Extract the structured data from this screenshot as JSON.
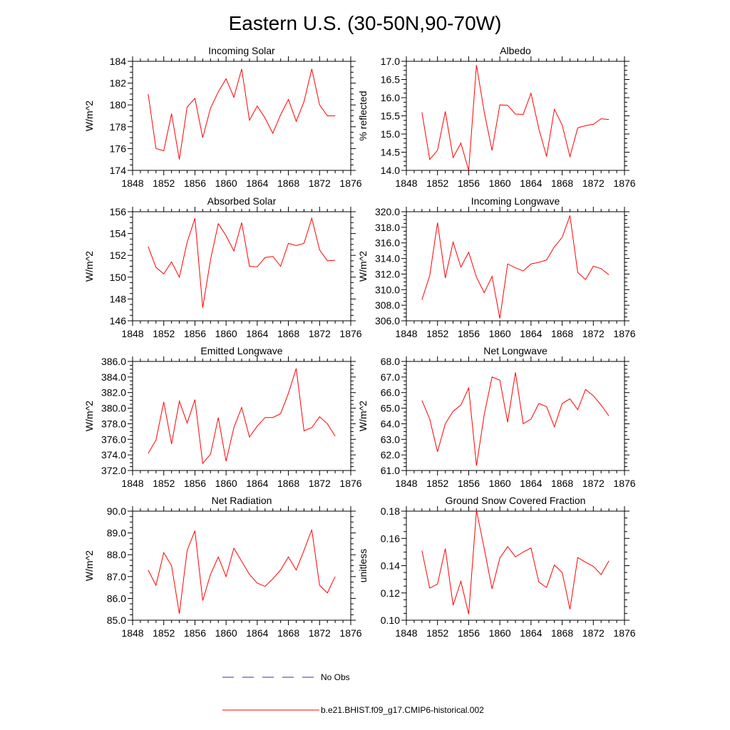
{
  "figure": {
    "title": "Eastern U.S. (30-50N,90-70W)"
  },
  "legend": {
    "obs_label": "No Obs",
    "obs_color": "#3333aa",
    "model_label": "b.e21.BHIST.f09_g17.CMIP6-historical.002",
    "model_color": "#ff0000"
  },
  "chart_data": [
    {
      "type": "line",
      "title": "Incoming Solar",
      "ylabel": "W/m^2",
      "xlim": [
        1848,
        1876
      ],
      "ylim": [
        174,
        184
      ],
      "xticks": [
        1848,
        1852,
        1856,
        1860,
        1864,
        1868,
        1872,
        1876
      ],
      "yticks": [
        174,
        176,
        178,
        180,
        182,
        184
      ],
      "ydecimals": 0,
      "x": [
        1850,
        1851,
        1852,
        1853,
        1854,
        1855,
        1856,
        1857,
        1858,
        1859,
        1860,
        1861,
        1862,
        1863,
        1864,
        1865,
        1866,
        1867,
        1868,
        1869,
        1870,
        1871,
        1872,
        1873,
        1874
      ],
      "series": [
        {
          "name": "b.e21.BHIST.f09_g17.CMIP6-historical.002",
          "values": [
            181.0,
            176.0,
            175.8,
            179.2,
            175.0,
            179.8,
            180.6,
            177.0,
            179.7,
            181.2,
            182.4,
            180.7,
            183.3,
            178.6,
            179.9,
            178.8,
            177.4,
            179.1,
            180.5,
            178.5,
            180.3,
            183.3,
            180.0,
            179.0,
            179.0
          ]
        }
      ]
    },
    {
      "type": "line",
      "title": "Albedo",
      "ylabel": "% reflected",
      "xlim": [
        1848,
        1876
      ],
      "ylim": [
        14.0,
        17.0
      ],
      "xticks": [
        1848,
        1852,
        1856,
        1860,
        1864,
        1868,
        1872,
        1876
      ],
      "yticks": [
        14.0,
        14.5,
        15.0,
        15.5,
        16.0,
        16.5,
        17.0
      ],
      "ydecimals": 1,
      "x": [
        1850,
        1851,
        1852,
        1853,
        1854,
        1855,
        1856,
        1857,
        1858,
        1859,
        1860,
        1861,
        1862,
        1863,
        1864,
        1865,
        1866,
        1867,
        1868,
        1869,
        1870,
        1871,
        1872,
        1873,
        1874
      ],
      "series": [
        {
          "name": "b.e21.BHIST.f09_g17.CMIP6-historical.002",
          "values": [
            15.6,
            14.3,
            14.55,
            15.62,
            14.35,
            14.75,
            14.0,
            16.9,
            15.6,
            14.55,
            15.8,
            15.79,
            15.55,
            15.54,
            16.12,
            15.15,
            14.38,
            15.68,
            15.25,
            14.38,
            15.17,
            15.23,
            15.27,
            15.42,
            15.4
          ]
        }
      ]
    },
    {
      "type": "line",
      "title": "Absorbed Solar",
      "ylabel": "W/m^2",
      "xlim": [
        1848,
        1876
      ],
      "ylim": [
        146,
        156
      ],
      "xticks": [
        1848,
        1852,
        1856,
        1860,
        1864,
        1868,
        1872,
        1876
      ],
      "yticks": [
        146,
        148,
        150,
        152,
        154,
        156
      ],
      "ydecimals": 0,
      "x": [
        1850,
        1851,
        1852,
        1853,
        1854,
        1855,
        1856,
        1857,
        1858,
        1859,
        1860,
        1861,
        1862,
        1863,
        1864,
        1865,
        1866,
        1867,
        1868,
        1869,
        1870,
        1871,
        1872,
        1873,
        1874
      ],
      "series": [
        {
          "name": "b.e21.BHIST.f09_g17.CMIP6-historical.002",
          "values": [
            152.8,
            150.9,
            150.3,
            151.4,
            150.0,
            153.2,
            155.4,
            147.2,
            151.6,
            154.9,
            153.8,
            152.4,
            155.0,
            151.0,
            150.95,
            151.8,
            151.9,
            151.0,
            153.1,
            152.9,
            153.1,
            155.4,
            152.5,
            151.5,
            151.55
          ]
        }
      ]
    },
    {
      "type": "line",
      "title": "Incoming Longwave",
      "ylabel": "W/m^2",
      "xlim": [
        1848,
        1876
      ],
      "ylim": [
        306.0,
        320.0
      ],
      "xticks": [
        1848,
        1852,
        1856,
        1860,
        1864,
        1868,
        1872,
        1876
      ],
      "yticks": [
        306.0,
        308.0,
        310.0,
        312.0,
        314.0,
        316.0,
        318.0,
        320.0
      ],
      "ydecimals": 1,
      "x": [
        1850,
        1851,
        1852,
        1853,
        1854,
        1855,
        1856,
        1857,
        1858,
        1859,
        1860,
        1861,
        1862,
        1863,
        1864,
        1865,
        1866,
        1867,
        1868,
        1869,
        1870,
        1871,
        1872,
        1873,
        1874
      ],
      "series": [
        {
          "name": "b.e21.BHIST.f09_g17.CMIP6-historical.002",
          "values": [
            308.7,
            311.8,
            318.6,
            311.5,
            316.1,
            312.9,
            314.8,
            311.6,
            309.6,
            311.7,
            306.3,
            313.3,
            312.8,
            312.4,
            313.3,
            313.5,
            313.8,
            315.5,
            316.7,
            319.5,
            312.2,
            311.3,
            313.0,
            312.7,
            311.9
          ]
        }
      ]
    },
    {
      "type": "line",
      "title": "Emitted Longwave",
      "ylabel": "W/m^2",
      "xlim": [
        1848,
        1876
      ],
      "ylim": [
        372.0,
        386.0
      ],
      "xticks": [
        1848,
        1852,
        1856,
        1860,
        1864,
        1868,
        1872,
        1876
      ],
      "yticks": [
        372.0,
        374.0,
        376.0,
        378.0,
        380.0,
        382.0,
        384.0,
        386.0
      ],
      "ydecimals": 1,
      "x": [
        1850,
        1851,
        1852,
        1853,
        1854,
        1855,
        1856,
        1857,
        1858,
        1859,
        1860,
        1861,
        1862,
        1863,
        1864,
        1865,
        1866,
        1867,
        1868,
        1869,
        1870,
        1871,
        1872,
        1873,
        1874
      ],
      "series": [
        {
          "name": "b.e21.BHIST.f09_g17.CMIP6-historical.002",
          "values": [
            374.2,
            375.9,
            380.8,
            375.4,
            380.9,
            378.1,
            381.1,
            372.9,
            374.1,
            378.8,
            373.2,
            377.5,
            380.1,
            376.3,
            377.7,
            378.8,
            378.8,
            379.3,
            381.9,
            385.1,
            377.1,
            377.5,
            378.9,
            378.0,
            376.4
          ]
        }
      ]
    },
    {
      "type": "line",
      "title": "Net Longwave",
      "ylabel": "W/m^2",
      "xlim": [
        1848,
        1876
      ],
      "ylim": [
        61.0,
        68.0
      ],
      "xticks": [
        1848,
        1852,
        1856,
        1860,
        1864,
        1868,
        1872,
        1876
      ],
      "yticks": [
        61.0,
        62.0,
        63.0,
        64.0,
        65.0,
        66.0,
        67.0,
        68.0
      ],
      "ydecimals": 1,
      "x": [
        1850,
        1851,
        1852,
        1853,
        1854,
        1855,
        1856,
        1857,
        1858,
        1859,
        1860,
        1861,
        1862,
        1863,
        1864,
        1865,
        1866,
        1867,
        1868,
        1869,
        1870,
        1871,
        1872,
        1873,
        1874
      ],
      "series": [
        {
          "name": "b.e21.BHIST.f09_g17.CMIP6-historical.002",
          "values": [
            65.5,
            64.3,
            62.2,
            64.0,
            64.8,
            65.2,
            66.3,
            61.3,
            64.6,
            67.0,
            66.8,
            64.1,
            67.3,
            64.0,
            64.3,
            65.3,
            65.1,
            63.8,
            65.3,
            65.6,
            64.9,
            66.2,
            65.8,
            65.2,
            64.5
          ]
        }
      ]
    },
    {
      "type": "line",
      "title": "Net Radiation",
      "ylabel": "W/m^2",
      "xlim": [
        1848,
        1876
      ],
      "ylim": [
        85.0,
        90.0
      ],
      "xticks": [
        1848,
        1852,
        1856,
        1860,
        1864,
        1868,
        1872,
        1876
      ],
      "yticks": [
        85.0,
        86.0,
        87.0,
        88.0,
        89.0,
        90.0
      ],
      "ydecimals": 1,
      "x": [
        1850,
        1851,
        1852,
        1853,
        1854,
        1855,
        1856,
        1857,
        1858,
        1859,
        1860,
        1861,
        1862,
        1863,
        1864,
        1865,
        1866,
        1867,
        1868,
        1869,
        1870,
        1871,
        1872,
        1873,
        1874
      ],
      "series": [
        {
          "name": "b.e21.BHIST.f09_g17.CMIP6-historical.002",
          "values": [
            87.3,
            86.6,
            88.1,
            87.5,
            85.3,
            88.2,
            89.1,
            85.9,
            87.1,
            87.9,
            87.0,
            88.3,
            87.7,
            87.1,
            86.7,
            86.55,
            86.9,
            87.3,
            87.9,
            87.3,
            88.2,
            89.15,
            86.6,
            86.25,
            87.0
          ]
        }
      ]
    },
    {
      "type": "line",
      "title": "Ground Snow Covered Fraction",
      "ylabel": "unitless",
      "xlim": [
        1848,
        1876
      ],
      "ylim": [
        0.1,
        0.18
      ],
      "xticks": [
        1848,
        1852,
        1856,
        1860,
        1864,
        1868,
        1872,
        1876
      ],
      "yticks": [
        0.1,
        0.12,
        0.14,
        0.16,
        0.18
      ],
      "ydecimals": 2,
      "x": [
        1850,
        1851,
        1852,
        1853,
        1854,
        1855,
        1856,
        1857,
        1858,
        1859,
        1860,
        1861,
        1862,
        1863,
        1864,
        1865,
        1866,
        1867,
        1868,
        1869,
        1870,
        1871,
        1872,
        1873,
        1874
      ],
      "series": [
        {
          "name": "b.e21.BHIST.f09_g17.CMIP6-historical.002",
          "values": [
            0.151,
            0.1235,
            0.1265,
            0.1525,
            0.111,
            0.1285,
            0.1045,
            0.1805,
            0.1525,
            0.123,
            0.1455,
            0.154,
            0.1465,
            0.15,
            0.153,
            0.128,
            0.124,
            0.1405,
            0.135,
            0.108,
            0.146,
            0.1425,
            0.1395,
            0.1335,
            0.1435
          ]
        }
      ]
    }
  ]
}
